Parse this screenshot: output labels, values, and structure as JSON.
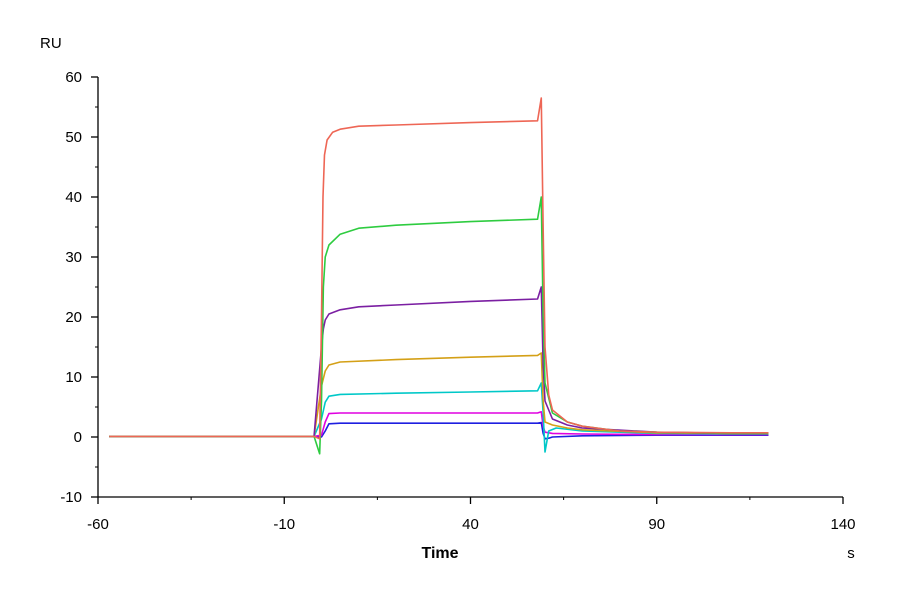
{
  "chart_data": {
    "type": "line",
    "xlabel": "Time",
    "x_unit": "s",
    "ylabel": "RU",
    "xlim": [
      -60,
      140
    ],
    "ylim": [
      -10,
      60
    ],
    "x_ticks": [
      -60,
      -10,
      40,
      90,
      140
    ],
    "y_ticks": [
      -10,
      0,
      10,
      20,
      30,
      40,
      50,
      60
    ],
    "grid": false,
    "series": [
      {
        "color": "#1f1fe0",
        "values": [
          [
            -57,
            0.1
          ],
          [
            -10,
            0.1
          ],
          [
            -2,
            0.1
          ],
          [
            0,
            0.0
          ],
          [
            1,
            1.0
          ],
          [
            2,
            2.2
          ],
          [
            5,
            2.3
          ],
          [
            20,
            2.3
          ],
          [
            40,
            2.3
          ],
          [
            58,
            2.3
          ],
          [
            59,
            2.4
          ],
          [
            59.5,
            0.6
          ],
          [
            60,
            -0.3
          ],
          [
            61,
            -0.2
          ],
          [
            62,
            0.0
          ],
          [
            70,
            0.2
          ],
          [
            90,
            0.3
          ],
          [
            110,
            0.3
          ],
          [
            120,
            0.3
          ]
        ]
      },
      {
        "color": "#e000e0",
        "values": [
          [
            -57,
            0.1
          ],
          [
            -10,
            0.1
          ],
          [
            -2,
            0.1
          ],
          [
            0,
            0.3
          ],
          [
            1,
            2.5
          ],
          [
            2,
            3.9
          ],
          [
            5,
            4.0
          ],
          [
            20,
            4.0
          ],
          [
            40,
            4.0
          ],
          [
            58,
            4.0
          ],
          [
            59,
            4.2
          ],
          [
            59.5,
            1.8
          ],
          [
            60,
            0.8
          ],
          [
            62,
            0.6
          ],
          [
            70,
            0.5
          ],
          [
            90,
            0.4
          ],
          [
            110,
            0.4
          ],
          [
            120,
            0.4
          ]
        ]
      },
      {
        "color": "#00c8c8",
        "values": [
          [
            -57,
            0.1
          ],
          [
            -10,
            0.1
          ],
          [
            -2,
            0.1
          ],
          [
            0,
            3.0
          ],
          [
            1,
            5.8
          ],
          [
            2,
            6.8
          ],
          [
            5,
            7.1
          ],
          [
            20,
            7.3
          ],
          [
            40,
            7.5
          ],
          [
            58,
            7.7
          ],
          [
            59,
            9.0
          ],
          [
            59.5,
            4.0
          ],
          [
            60,
            -2.5
          ],
          [
            61,
            1.0
          ],
          [
            63,
            1.5
          ],
          [
            70,
            1.0
          ],
          [
            90,
            0.6
          ],
          [
            110,
            0.5
          ],
          [
            120,
            0.5
          ]
        ]
      },
      {
        "color": "#d4a017",
        "values": [
          [
            -57,
            0.1
          ],
          [
            -10,
            0.1
          ],
          [
            -2,
            0.1
          ],
          [
            0,
            8.5
          ],
          [
            1,
            11.0
          ],
          [
            2,
            12.0
          ],
          [
            5,
            12.5
          ],
          [
            20,
            12.9
          ],
          [
            40,
            13.3
          ],
          [
            58,
            13.6
          ],
          [
            59,
            14.0
          ],
          [
            59.5,
            6.0
          ],
          [
            60,
            2.5
          ],
          [
            62,
            2.0
          ],
          [
            66,
            1.5
          ],
          [
            70,
            1.2
          ],
          [
            90,
            0.7
          ],
          [
            110,
            0.6
          ],
          [
            120,
            0.6
          ]
        ]
      },
      {
        "color": "#7b1fa2",
        "values": [
          [
            -57,
            0.1
          ],
          [
            -10,
            0.1
          ],
          [
            -2,
            0.1
          ],
          [
            0,
            15.0
          ],
          [
            0.5,
            18.0
          ],
          [
            1,
            19.5
          ],
          [
            2,
            20.5
          ],
          [
            5,
            21.2
          ],
          [
            10,
            21.7
          ],
          [
            20,
            22.0
          ],
          [
            40,
            22.6
          ],
          [
            58,
            23.0
          ],
          [
            59,
            25.0
          ],
          [
            59.5,
            12.0
          ],
          [
            60,
            6.0
          ],
          [
            62,
            3.0
          ],
          [
            66,
            2.0
          ],
          [
            70,
            1.5
          ],
          [
            90,
            0.8
          ],
          [
            110,
            0.6
          ],
          [
            120,
            0.6
          ]
        ]
      },
      {
        "color": "#2ecc40",
        "values": [
          [
            -57,
            0.1
          ],
          [
            -10,
            0.1
          ],
          [
            -2,
            0.1
          ],
          [
            -0.5,
            -2.8
          ],
          [
            0,
            6.0
          ],
          [
            0.5,
            25.0
          ],
          [
            1,
            30.0
          ],
          [
            2,
            32.0
          ],
          [
            5,
            33.8
          ],
          [
            10,
            34.8
          ],
          [
            20,
            35.3
          ],
          [
            40,
            35.9
          ],
          [
            58,
            36.3
          ],
          [
            59,
            40.0
          ],
          [
            59.5,
            20.0
          ],
          [
            60,
            9.0
          ],
          [
            62,
            4.0
          ],
          [
            66,
            2.5
          ],
          [
            70,
            1.8
          ],
          [
            80,
            1.0
          ],
          [
            90,
            0.8
          ],
          [
            110,
            0.6
          ],
          [
            120,
            0.6
          ]
        ]
      },
      {
        "color": "#ee6655",
        "values": [
          [
            -57,
            0.1
          ],
          [
            -10,
            0.1
          ],
          [
            -2,
            0.1
          ],
          [
            -0.5,
            -0.3
          ],
          [
            0,
            20.0
          ],
          [
            0.4,
            40.0
          ],
          [
            0.8,
            47.0
          ],
          [
            1.5,
            49.5
          ],
          [
            3,
            50.8
          ],
          [
            5,
            51.3
          ],
          [
            10,
            51.8
          ],
          [
            20,
            52.0
          ],
          [
            40,
            52.4
          ],
          [
            58,
            52.7
          ],
          [
            59,
            56.5
          ],
          [
            59.5,
            35.0
          ],
          [
            60,
            15.0
          ],
          [
            61,
            7.0
          ],
          [
            62,
            4.5
          ],
          [
            66,
            2.5
          ],
          [
            70,
            1.8
          ],
          [
            80,
            1.0
          ],
          [
            90,
            0.8
          ],
          [
            110,
            0.7
          ],
          [
            120,
            0.7
          ]
        ]
      }
    ]
  }
}
